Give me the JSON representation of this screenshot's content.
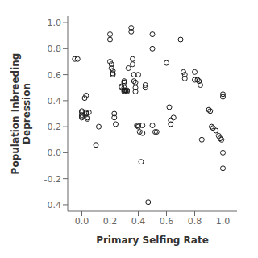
{
  "chart_data": {
    "type": "scatter",
    "x": [
      -0.05,
      -0.03,
      0.0,
      0.0,
      0.0,
      0.0,
      0.0,
      0.02,
      0.03,
      0.03,
      0.03,
      0.04,
      0.04,
      0.05,
      0.1,
      0.12,
      0.2,
      0.2,
      0.2,
      0.21,
      0.21,
      0.22,
      0.22,
      0.22,
      0.23,
      0.23,
      0.24,
      0.28,
      0.28,
      0.3,
      0.3,
      0.3,
      0.3,
      0.3,
      0.31,
      0.31,
      0.32,
      0.32,
      0.33,
      0.35,
      0.35,
      0.36,
      0.36,
      0.37,
      0.37,
      0.38,
      0.38,
      0.38,
      0.39,
      0.4,
      0.4,
      0.4,
      0.41,
      0.42,
      0.43,
      0.43,
      0.45,
      0.45,
      0.47,
      0.5,
      0.5,
      0.5,
      0.52,
      0.53,
      0.6,
      0.62,
      0.63,
      0.63,
      0.65,
      0.7,
      0.72,
      0.73,
      0.73,
      0.8,
      0.8,
      0.82,
      0.83,
      0.84,
      0.85,
      0.9,
      0.91,
      0.92,
      0.93,
      0.95,
      0.97,
      0.98,
      0.99,
      1.0,
      1.0,
      1.0,
      1.0
    ],
    "values": [
      0.72,
      0.72,
      0.32,
      0.31,
      0.29,
      0.28,
      0.27,
      0.42,
      0.44,
      0.31,
      0.3,
      0.27,
      0.26,
      0.31,
      0.06,
      0.2,
      0.91,
      0.87,
      0.7,
      0.68,
      0.65,
      0.63,
      0.61,
      0.6,
      0.3,
      0.27,
      0.22,
      0.51,
      0.5,
      0.55,
      0.54,
      0.5,
      0.48,
      0.47,
      0.48,
      0.47,
      0.48,
      0.47,
      0.65,
      0.96,
      0.93,
      0.72,
      0.68,
      0.6,
      0.55,
      0.54,
      0.5,
      0.47,
      0.21,
      0.6,
      0.21,
      0.2,
      0.16,
      -0.07,
      0.21,
      0.15,
      0.52,
      0.5,
      -0.38,
      0.91,
      0.8,
      0.21,
      0.16,
      0.16,
      0.69,
      0.35,
      0.25,
      0.22,
      0.27,
      0.87,
      0.62,
      0.6,
      0.57,
      0.62,
      0.56,
      0.56,
      0.55,
      0.52,
      0.1,
      0.33,
      0.32,
      0.2,
      0.19,
      0.17,
      0.13,
      0.11,
      0.1,
      0.0,
      0.43,
      0.45,
      -0.12
    ],
    "xlabel": "Primary Selfing Rate",
    "ylabel": "Population Inbreeding\nDepression",
    "xlim": [
      -0.1,
      1.1
    ],
    "ylim": [
      -0.45,
      1.05
    ],
    "xticks": [
      {
        "value": 0,
        "label": "0.0"
      },
      0.2,
      0.4,
      0.6,
      0.8,
      {
        "value": 1,
        "label": "1.0"
      }
    ],
    "yticks": [
      -0.4,
      -0.2,
      {
        "value": 0,
        "label": "0.0"
      },
      0.2,
      0.4,
      0.6,
      0.8,
      {
        "value": 1,
        "label": "1.0"
      }
    ],
    "color": "#1a1a1a",
    "marker": "circle",
    "grid": false
  }
}
